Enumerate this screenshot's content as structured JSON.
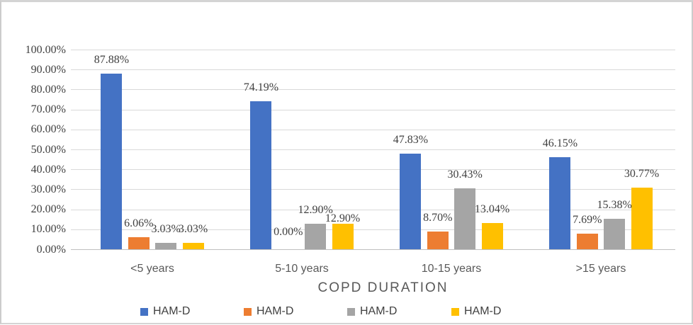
{
  "frame": {
    "background": "#ffffff",
    "border_color": "#d0d0d0"
  },
  "chart_data": {
    "type": "bar",
    "title": "",
    "xlabel": "COPD DURATION",
    "ylabel": "",
    "categories": [
      "<5 years",
      "5-10 years",
      "10-15 years",
      ">15 years"
    ],
    "series": [
      {
        "name": "HAM-D",
        "color": "#4472C4",
        "values": [
          87.88,
          74.19,
          47.83,
          46.15
        ],
        "data_labels": [
          "87.88%",
          "74.19%",
          "47.83%",
          "46.15%"
        ],
        "label_dy": [
          0,
          0,
          0,
          0
        ]
      },
      {
        "name": "HAM-D",
        "color": "#ED7D31",
        "values": [
          6.06,
          0,
          8.7,
          7.69
        ],
        "data_labels": [
          "6.06%",
          "0.00%",
          "8.70%",
          "7.69%"
        ],
        "label_dy": [
          0,
          -5,
          0,
          0
        ]
      },
      {
        "name": "HAM-D",
        "color": "#A5A5A5",
        "values": [
          3.03,
          12.9,
          30.43,
          15.38
        ],
        "data_labels": [
          "3.03%",
          "12.90%",
          "30.43%",
          "15.38%"
        ],
        "label_dy": [
          0,
          0,
          0,
          0
        ]
      },
      {
        "name": "HAM-D",
        "color": "#FFC000",
        "values": [
          3.03,
          12.9,
          13.04,
          30.77
        ],
        "data_labels": [
          "3.03%",
          "12.90%",
          "13.04%",
          "30.77%"
        ],
        "label_dy": [
          0,
          12,
          0,
          0
        ]
      }
    ],
    "y_axis": {
      "min": 0,
      "max": 100,
      "step": 10,
      "tick_labels": [
        "0.00%",
        "10.00%",
        "20.00%",
        "30.00%",
        "40.00%",
        "50.00%",
        "60.00%",
        "70.00%",
        "80.00%",
        "90.00%",
        "100.00%"
      ]
    },
    "legend": {
      "position": "bottom",
      "entries": [
        "HAM-D",
        "HAM-D",
        "HAM-D",
        "HAM-D"
      ]
    },
    "grid": true,
    "ylim": [
      0,
      100
    ],
    "style": {
      "gridline": "#d9d9d9",
      "axis_line": "#bfbfbf",
      "tick_text": "#404040",
      "label_text": "#3f3f3f",
      "category_text": "#595959",
      "title_text": "#595959",
      "legend_text": "#404040"
    }
  }
}
